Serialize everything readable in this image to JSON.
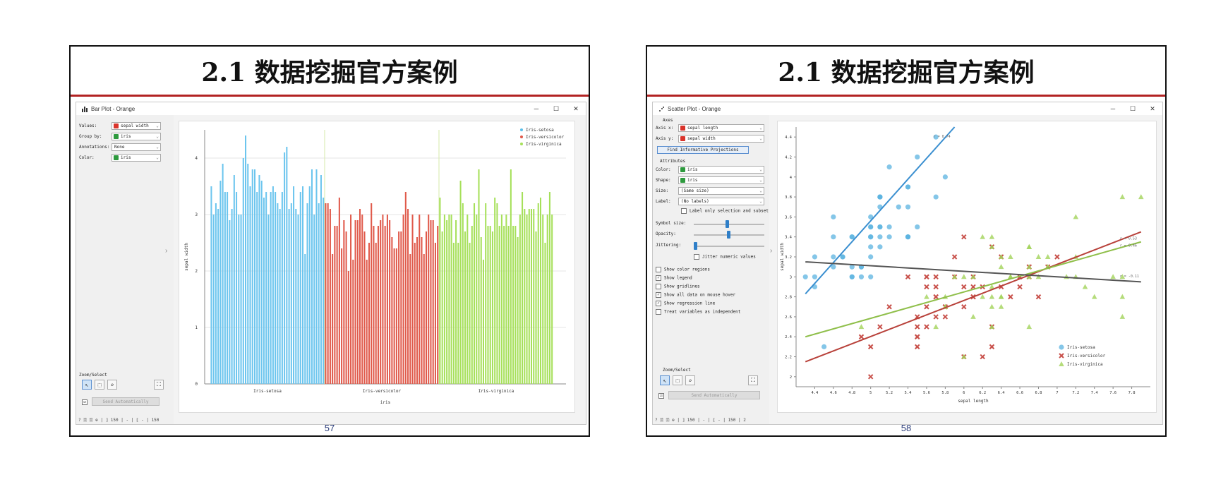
{
  "slides": [
    {
      "title": "2.1 数据挖掘官方案例",
      "page": "57",
      "window": {
        "title": "Bar Plot - Orange",
        "buttons": {
          "min": "─",
          "max": "☐",
          "close": "✕"
        },
        "controls": [
          {
            "label": "Values:",
            "value": "sepal width",
            "color": "#d9342b"
          },
          {
            "label": "Group by:",
            "value": "iris",
            "color": "#2e9a3e"
          },
          {
            "label": "Annotations:",
            "value": "None",
            "color": ""
          },
          {
            "label": "Color:",
            "value": "iris",
            "color": "#2e9a3e"
          }
        ],
        "zoom_select_label": "Zoom/Select",
        "send_label": "Send Automatically",
        "status": "? 🗎 🗎 ⊕ | ⟧ 150 | - | ⟦ - | 150"
      },
      "chart_data": {
        "type": "bar",
        "xlabel": "iris",
        "ylabel": "sepal width",
        "ylim": [
          0,
          4.5
        ],
        "yticks": [
          0,
          1,
          2,
          3,
          4
        ],
        "group_labels": [
          "Iris-setosa",
          "Iris-versicolor",
          "Iris-virginica"
        ],
        "legend": [
          {
            "name": "Iris-setosa",
            "color": "#5bbfe8"
          },
          {
            "name": "Iris-versicolor",
            "color": "#e0594a"
          },
          {
            "name": "Iris-virginica",
            "color": "#a6e05a"
          }
        ],
        "series": [
          {
            "name": "Iris-setosa",
            "color": "#6cc5ee",
            "values": [
              3.5,
              3.0,
              3.2,
              3.1,
              3.6,
              3.9,
              3.4,
              3.4,
              2.9,
              3.1,
              3.7,
              3.4,
              3.0,
              3.0,
              4.0,
              4.4,
              3.9,
              3.5,
              3.8,
              3.8,
              3.4,
              3.7,
              3.6,
              3.3,
              3.4,
              3.0,
              3.4,
              3.5,
              3.4,
              3.2,
              3.1,
              3.4,
              4.1,
              4.2,
              3.1,
              3.2,
              3.5,
              3.1,
              3.0,
              3.4,
              3.5,
              2.3,
              3.2,
              3.5,
              3.8,
              3.0,
              3.8,
              3.2,
              3.7,
              3.3
            ]
          },
          {
            "name": "Iris-versicolor",
            "color": "#e0594a",
            "values": [
              3.2,
              3.2,
              3.1,
              2.3,
              2.8,
              2.8,
              3.3,
              2.4,
              2.9,
              2.7,
              2.0,
              3.0,
              2.2,
              2.9,
              2.9,
              3.1,
              3.0,
              2.7,
              2.2,
              2.5,
              3.2,
              2.8,
              2.5,
              2.8,
              2.9,
              3.0,
              2.8,
              3.0,
              2.9,
              2.6,
              2.4,
              2.4,
              2.7,
              2.7,
              3.0,
              3.4,
              3.1,
              2.3,
              3.0,
              2.5,
              2.6,
              3.0,
              2.6,
              2.3,
              2.7,
              3.0,
              2.9,
              2.9,
              2.5,
              2.8
            ]
          },
          {
            "name": "Iris-virginica",
            "color": "#a6e05a",
            "values": [
              3.3,
              2.7,
              3.0,
              2.9,
              3.0,
              3.0,
              2.5,
              2.9,
              2.5,
              3.6,
              3.2,
              2.7,
              3.0,
              2.5,
              2.8,
              3.2,
              3.0,
              3.8,
              2.6,
              2.2,
              3.2,
              2.8,
              2.8,
              2.7,
              3.3,
              3.2,
              2.8,
              3.0,
              2.8,
              3.0,
              2.8,
              3.8,
              2.8,
              2.8,
              2.6,
              3.0,
              3.4,
              3.1,
              3.0,
              3.1,
              3.1,
              3.1,
              2.7,
              3.2,
              3.3,
              3.0,
              2.5,
              3.0,
              3.4,
              3.0
            ]
          }
        ]
      }
    },
    {
      "title": "2.1 数据挖掘官方案例",
      "page": "58",
      "window": {
        "title": "Scatter Plot - Orange",
        "buttons": {
          "min": "─",
          "max": "☐",
          "close": "✕"
        },
        "axes_section": "Axes",
        "axis_x_label": "Axis x:",
        "axis_x_value": "sepal length",
        "axis_y_label": "Axis y:",
        "axis_y_value": "sepal width",
        "find_label": "Find Informative Projections",
        "attributes_section": "Attributes",
        "attributes": [
          {
            "label": "Color:",
            "value": "iris",
            "color": "#2e9a3e"
          },
          {
            "label": "Shape:",
            "value": "iris",
            "color": "#2e9a3e"
          },
          {
            "label": "Size:",
            "value": "(Same size)",
            "color": ""
          },
          {
            "label": "Label:",
            "value": "(No labels)",
            "color": ""
          }
        ],
        "label_only_selection": "Label only selection and subset",
        "sliders": [
          {
            "label": "Symbol size:",
            "level": 0.45
          },
          {
            "label": "Opacity:",
            "level": 0.47
          },
          {
            "label": "Jittering:",
            "level": 0.0
          }
        ],
        "jitter_numeric": "Jitter numeric values",
        "options": [
          {
            "label": "Show color regions",
            "checked": false
          },
          {
            "label": "Show legend",
            "checked": true
          },
          {
            "label": "Show gridlines",
            "checked": false
          },
          {
            "label": "Show all data on mouse hover",
            "checked": true
          },
          {
            "label": "Show regression line",
            "checked": true
          },
          {
            "label": "Treat variables as independent",
            "checked": false
          }
        ],
        "zoom_select_label": "Zoom/Select",
        "send_label": "Send Automatically",
        "status": "? 🗎 🗎 ⊕ | ⟧ 150 | - | ⟦ - | 150 | 2"
      },
      "chart_data": {
        "type": "scatter",
        "xlabel": "sepal length",
        "ylabel": "sepal width",
        "xlim": [
          4.2,
          8.0
        ],
        "ylim": [
          1.9,
          4.5
        ],
        "xticks": [
          4.4,
          4.6,
          4.8,
          5,
          5.2,
          5.4,
          5.6,
          5.8,
          6,
          6.2,
          6.4,
          6.6,
          6.8,
          7,
          7.2,
          7.4,
          7.6,
          7.8
        ],
        "yticks": [
          2,
          2.2,
          2.4,
          2.6,
          2.8,
          3,
          3.2,
          3.4,
          3.6,
          3.8,
          4,
          4.2,
          4.4
        ],
        "legend": [
          {
            "name": "Iris-setosa",
            "color": "#5bb3e0"
          },
          {
            "name": "Iris-versicolor",
            "color": "#c8504a"
          },
          {
            "name": "Iris-virginica",
            "color": "#a2d35a"
          }
        ],
        "regression": [
          {
            "name": "Iris-setosa",
            "color": "#3a8fd0",
            "x": [
              4.3,
              5.9
            ],
            "y": [
              2.83,
              4.5
            ],
            "label": "r = 0.74"
          },
          {
            "name": "Iris-versicolor",
            "color": "#b8413a",
            "x": [
              4.3,
              7.9
            ],
            "y": [
              2.15,
              3.45
            ],
            "label": "r = 0.53"
          },
          {
            "name": "Iris-virginica",
            "color": "#8fbf4a",
            "x": [
              4.3,
              7.9
            ],
            "y": [
              2.4,
              3.35
            ],
            "label": "r = 0.46"
          },
          {
            "name": "all",
            "color": "#555555",
            "x": [
              4.3,
              7.9
            ],
            "y": [
              3.15,
              2.95
            ],
            "label": "r = -0.11"
          }
        ],
        "points": {
          "Iris-setosa": [
            [
              5.1,
              3.5
            ],
            [
              4.9,
              3.0
            ],
            [
              4.7,
              3.2
            ],
            [
              4.6,
              3.1
            ],
            [
              5.0,
              3.6
            ],
            [
              5.4,
              3.9
            ],
            [
              4.6,
              3.4
            ],
            [
              5.0,
              3.4
            ],
            [
              4.4,
              2.9
            ],
            [
              4.9,
              3.1
            ],
            [
              5.4,
              3.7
            ],
            [
              4.8,
              3.4
            ],
            [
              4.8,
              3.0
            ],
            [
              4.3,
              3.0
            ],
            [
              5.8,
              4.0
            ],
            [
              5.7,
              4.4
            ],
            [
              5.4,
              3.9
            ],
            [
              5.1,
              3.5
            ],
            [
              5.7,
              3.8
            ],
            [
              5.1,
              3.8
            ],
            [
              5.4,
              3.4
            ],
            [
              5.1,
              3.7
            ],
            [
              4.6,
              3.6
            ],
            [
              5.1,
              3.3
            ],
            [
              4.8,
              3.4
            ],
            [
              5.0,
              3.0
            ],
            [
              5.0,
              3.4
            ],
            [
              5.2,
              3.5
            ],
            [
              5.2,
              3.4
            ],
            [
              4.7,
              3.2
            ],
            [
              4.8,
              3.1
            ],
            [
              5.4,
              3.4
            ],
            [
              5.2,
              4.1
            ],
            [
              5.5,
              4.2
            ],
            [
              4.9,
              3.1
            ],
            [
              5.0,
              3.2
            ],
            [
              5.5,
              3.5
            ],
            [
              4.4,
              3.0
            ],
            [
              5.1,
              3.4
            ],
            [
              5.0,
              3.5
            ],
            [
              4.5,
              2.3
            ],
            [
              4.4,
              3.2
            ],
            [
              5.0,
              3.5
            ],
            [
              5.1,
              3.8
            ],
            [
              4.8,
              3.0
            ],
            [
              5.1,
              3.8
            ],
            [
              4.6,
              3.2
            ],
            [
              5.3,
              3.7
            ],
            [
              5.0,
              3.3
            ],
            [
              5.4,
              3.4
            ]
          ],
          "Iris-versicolor": [
            [
              7.0,
              3.2
            ],
            [
              6.4,
              3.2
            ],
            [
              6.9,
              3.1
            ],
            [
              5.5,
              2.3
            ],
            [
              6.5,
              2.8
            ],
            [
              5.7,
              2.8
            ],
            [
              6.3,
              3.3
            ],
            [
              4.9,
              2.4
            ],
            [
              6.6,
              2.9
            ],
            [
              5.2,
              2.7
            ],
            [
              5.0,
              2.0
            ],
            [
              5.9,
              3.0
            ],
            [
              6.0,
              2.2
            ],
            [
              6.1,
              2.9
            ],
            [
              5.6,
              2.9
            ],
            [
              6.7,
              3.1
            ],
            [
              5.6,
              3.0
            ],
            [
              5.8,
              2.7
            ],
            [
              6.2,
              2.2
            ],
            [
              5.6,
              2.5
            ],
            [
              5.9,
              3.2
            ],
            [
              6.1,
              2.8
            ],
            [
              6.3,
              2.5
            ],
            [
              6.1,
              2.8
            ],
            [
              6.4,
              2.9
            ],
            [
              6.6,
              3.0
            ],
            [
              6.8,
              2.8
            ],
            [
              6.7,
              3.0
            ],
            [
              6.0,
              2.9
            ],
            [
              5.7,
              2.6
            ],
            [
              5.5,
              2.4
            ],
            [
              5.5,
              2.4
            ],
            [
              5.8,
              2.7
            ],
            [
              6.0,
              2.7
            ],
            [
              5.4,
              3.0
            ],
            [
              6.0,
              3.4
            ],
            [
              6.7,
              3.1
            ],
            [
              6.3,
              2.3
            ],
            [
              5.6,
              3.0
            ],
            [
              5.5,
              2.5
            ],
            [
              5.5,
              2.6
            ],
            [
              6.1,
              3.0
            ],
            [
              5.8,
              2.6
            ],
            [
              5.0,
              2.3
            ],
            [
              5.6,
              2.7
            ],
            [
              5.7,
              3.0
            ],
            [
              5.7,
              2.9
            ],
            [
              6.2,
              2.9
            ],
            [
              5.1,
              2.5
            ],
            [
              5.7,
              2.8
            ]
          ],
          "Iris-virginica": [
            [
              6.3,
              3.3
            ],
            [
              5.8,
              2.7
            ],
            [
              7.1,
              3.0
            ],
            [
              6.3,
              2.9
            ],
            [
              6.5,
              3.0
            ],
            [
              7.6,
              3.0
            ],
            [
              4.9,
              2.5
            ],
            [
              7.3,
              2.9
            ],
            [
              6.7,
              2.5
            ],
            [
              7.2,
              3.6
            ],
            [
              6.5,
              3.2
            ],
            [
              6.4,
              2.7
            ],
            [
              6.8,
              3.0
            ],
            [
              5.7,
              2.5
            ],
            [
              5.8,
              2.8
            ],
            [
              6.4,
              3.2
            ],
            [
              6.5,
              3.0
            ],
            [
              7.7,
              3.8
            ],
            [
              7.7,
              2.6
            ],
            [
              6.0,
              2.2
            ],
            [
              6.9,
              3.2
            ],
            [
              5.6,
              2.8
            ],
            [
              7.7,
              2.8
            ],
            [
              6.3,
              2.7
            ],
            [
              6.7,
              3.3
            ],
            [
              7.2,
              3.2
            ],
            [
              6.2,
              2.8
            ],
            [
              6.1,
              3.0
            ],
            [
              6.4,
              2.8
            ],
            [
              7.2,
              3.0
            ],
            [
              7.4,
              2.8
            ],
            [
              7.9,
              3.8
            ],
            [
              6.4,
              2.8
            ],
            [
              6.3,
              2.8
            ],
            [
              6.1,
              2.6
            ],
            [
              7.7,
              3.0
            ],
            [
              6.3,
              3.4
            ],
            [
              6.4,
              3.1
            ],
            [
              6.0,
              3.0
            ],
            [
              6.9,
              3.1
            ],
            [
              6.7,
              3.1
            ],
            [
              6.9,
              3.1
            ],
            [
              5.8,
              2.7
            ],
            [
              6.8,
              3.2
            ],
            [
              6.7,
              3.3
            ],
            [
              6.7,
              3.0
            ],
            [
              6.3,
              2.5
            ],
            [
              6.5,
              3.0
            ],
            [
              6.2,
              3.4
            ],
            [
              5.9,
              3.0
            ]
          ]
        }
      }
    }
  ]
}
